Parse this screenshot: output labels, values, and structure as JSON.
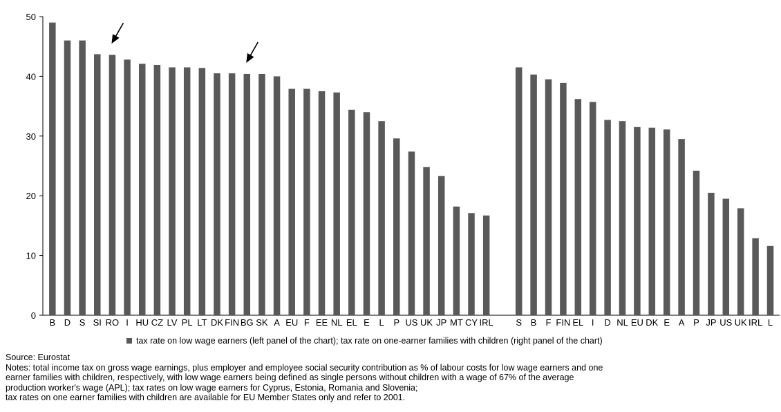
{
  "chart_data": {
    "type": "bar",
    "bar_color": "#595959",
    "axis_color": "#000000",
    "ylim": [
      0,
      50
    ],
    "yticks": [
      0,
      10,
      20,
      30,
      40,
      50
    ],
    "panels": [
      {
        "categories": [
          "B",
          "D",
          "S",
          "SI",
          "RO",
          "I",
          "HU",
          "CZ",
          "LV",
          "PL",
          "LT",
          "DK",
          "FIN",
          "BG",
          "SK",
          "A",
          "EU",
          "F",
          "EE",
          "NL",
          "EL",
          "E",
          "L",
          "P",
          "US",
          "UK",
          "JP",
          "MT",
          "CY",
          "IRL"
        ],
        "values": [
          49.0,
          46.0,
          46.0,
          43.7,
          43.6,
          42.8,
          42.1,
          41.9,
          41.5,
          41.5,
          41.4,
          40.5,
          40.5,
          40.4,
          40.4,
          40.0,
          37.9,
          37.9,
          37.5,
          37.3,
          34.4,
          34.0,
          32.5,
          29.6,
          27.4,
          24.8,
          23.3,
          18.2,
          17.1,
          16.7
        ]
      },
      {
        "categories": [
          "S",
          "B",
          "F",
          "FIN",
          "EL",
          "I",
          "D",
          "NL",
          "EU",
          "DK",
          "E",
          "A",
          "P",
          "JP",
          "US",
          "UK",
          "IRL",
          "L"
        ],
        "values": [
          41.5,
          40.3,
          39.5,
          38.9,
          36.2,
          35.7,
          32.7,
          32.5,
          31.5,
          31.4,
          31.1,
          29.5,
          24.2,
          20.5,
          19.5,
          17.9,
          12.9,
          11.6
        ]
      }
    ],
    "arrows": [
      {
        "panel": 0,
        "category": "RO"
      },
      {
        "panel": 0,
        "category": "BG"
      }
    ],
    "legend": "tax rate on low wage earners (left panel of the chart); tax rate on one-earner families with children (right panel of the chart)"
  },
  "notes": {
    "source": "Source: Eurostat",
    "lines": [
      "Notes: total income tax on gross wage earnings, plus employer and employee social security contribution as % of labour costs for low wage earners and one",
      "earner families with children, respectively, with low wage earners being defined as single persons without children with a wage of 67% of the average",
      "production worker's wage (APL); tax rates on low wage earners for Cyprus, Estonia, Romania and Slovenia;",
      "tax rates on one earner families with children are available for EU Member States only and refer to 2001."
    ]
  }
}
